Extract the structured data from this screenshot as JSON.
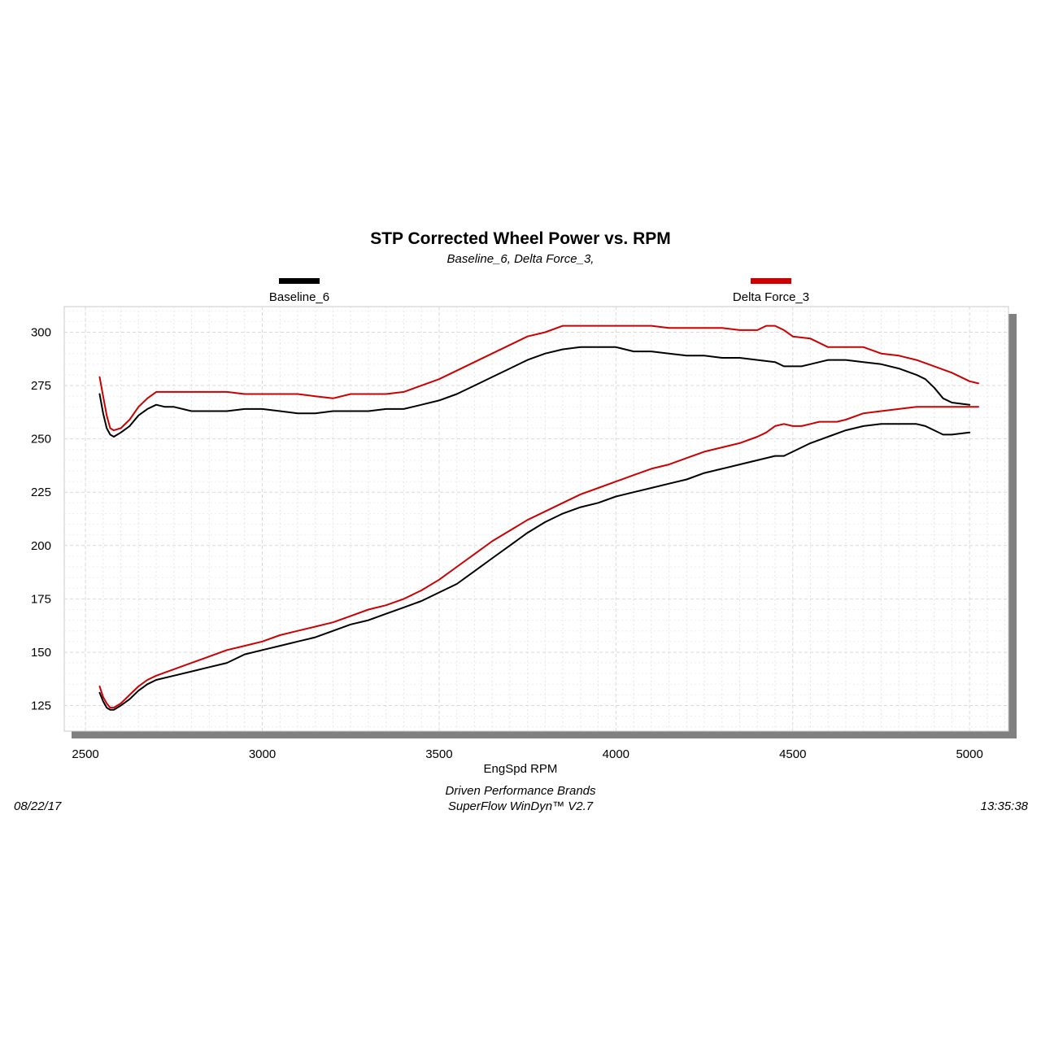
{
  "header": {
    "title": "STP Corrected Wheel Power vs. RPM",
    "subtitle": "Baseline_6, Delta Force_3,"
  },
  "legend": [
    {
      "label": "Baseline_6",
      "color": "#000000"
    },
    {
      "label": "Delta Force_3",
      "color": "#cc0000"
    }
  ],
  "footer": {
    "date": "08/22/17",
    "company": "Driven Performance Brands",
    "software": "SuperFlow WinDyn™  V2.7",
    "time": "13:35:38"
  },
  "chart_data": {
    "type": "line",
    "xlabel": "EngSpd  RPM",
    "ylabel": "",
    "xlim": [
      2440,
      5110
    ],
    "ylim": [
      113,
      312
    ],
    "xticks": [
      2500,
      3000,
      3500,
      4000,
      4500,
      5000
    ],
    "yticks": [
      125,
      150,
      175,
      200,
      225,
      250,
      275,
      300
    ],
    "grid": true,
    "legend_position": "top",
    "series": [
      {
        "name": "Baseline_6",
        "color": "#000000",
        "x": [
          2540,
          2550,
          2560,
          2570,
          2580,
          2600,
          2625,
          2650,
          2675,
          2700,
          2725,
          2750,
          2800,
          2850,
          2900,
          2950,
          3000,
          3050,
          3100,
          3150,
          3200,
          3250,
          3300,
          3350,
          3400,
          3450,
          3500,
          3550,
          3600,
          3650,
          3700,
          3750,
          3800,
          3850,
          3900,
          3950,
          4000,
          4050,
          4100,
          4150,
          4200,
          4250,
          4300,
          4350,
          4400,
          4450,
          4475,
          4500,
          4525,
          4550,
          4600,
          4650,
          4700,
          4750,
          4800,
          4850,
          4875,
          4900,
          4925,
          4950,
          5000
        ],
        "y": [
          271,
          262,
          255,
          252,
          251,
          253,
          256,
          261,
          264,
          266,
          265,
          265,
          263,
          263,
          263,
          264,
          264,
          263,
          262,
          262,
          263,
          263,
          263,
          264,
          264,
          266,
          268,
          271,
          275,
          279,
          283,
          287,
          290,
          292,
          293,
          293,
          293,
          291,
          291,
          290,
          289,
          289,
          288,
          288,
          287,
          286,
          284,
          284,
          284,
          285,
          287,
          287,
          286,
          285,
          283,
          280,
          278,
          274,
          269,
          267,
          266
        ]
      },
      {
        "name": "Delta Force_3",
        "color": "#cc0000",
        "x": [
          2540,
          2550,
          2560,
          2570,
          2580,
          2600,
          2625,
          2650,
          2675,
          2700,
          2725,
          2750,
          2800,
          2850,
          2900,
          2950,
          3000,
          3050,
          3100,
          3150,
          3200,
          3250,
          3300,
          3350,
          3400,
          3450,
          3500,
          3550,
          3600,
          3650,
          3700,
          3750,
          3800,
          3850,
          3900,
          3950,
          4000,
          4050,
          4100,
          4150,
          4200,
          4250,
          4300,
          4350,
          4400,
          4425,
          4450,
          4475,
          4500,
          4550,
          4600,
          4650,
          4700,
          4750,
          4800,
          4850,
          4900,
          4950,
          5000,
          5025
        ],
        "y": [
          279,
          270,
          261,
          255,
          254,
          255,
          259,
          265,
          269,
          272,
          272,
          272,
          272,
          272,
          272,
          271,
          271,
          271,
          271,
          270,
          269,
          271,
          271,
          271,
          272,
          275,
          278,
          282,
          286,
          290,
          294,
          298,
          300,
          303,
          303,
          303,
          303,
          303,
          303,
          302,
          302,
          302,
          302,
          301,
          301,
          303,
          303,
          301,
          298,
          297,
          293,
          293,
          293,
          290,
          289,
          287,
          284,
          281,
          277,
          276
        ]
      },
      {
        "name": "",
        "color": "#000000",
        "x": [
          2540,
          2550,
          2560,
          2570,
          2580,
          2600,
          2625,
          2650,
          2675,
          2700,
          2750,
          2800,
          2850,
          2900,
          2950,
          3000,
          3050,
          3100,
          3150,
          3200,
          3250,
          3300,
          3350,
          3400,
          3450,
          3500,
          3550,
          3600,
          3650,
          3700,
          3750,
          3800,
          3850,
          3900,
          3950,
          4000,
          4050,
          4100,
          4150,
          4200,
          4250,
          4300,
          4350,
          4400,
          4450,
          4475,
          4500,
          4550,
          4600,
          4650,
          4700,
          4750,
          4800,
          4850,
          4875,
          4900,
          4925,
          4950,
          5000
        ],
        "y": [
          131,
          127,
          124,
          123,
          123,
          125,
          128,
          132,
          135,
          137,
          139,
          141,
          143,
          145,
          149,
          151,
          153,
          155,
          157,
          160,
          163,
          165,
          168,
          171,
          174,
          178,
          182,
          188,
          194,
          200,
          206,
          211,
          215,
          218,
          220,
          223,
          225,
          227,
          229,
          231,
          234,
          236,
          238,
          240,
          242,
          242,
          244,
          248,
          251,
          254,
          256,
          257,
          257,
          257,
          256,
          254,
          252,
          252,
          253
        ]
      },
      {
        "name": "",
        "color": "#cc0000",
        "x": [
          2540,
          2550,
          2560,
          2570,
          2580,
          2600,
          2625,
          2650,
          2675,
          2700,
          2750,
          2800,
          2850,
          2900,
          2950,
          3000,
          3050,
          3100,
          3150,
          3200,
          3250,
          3300,
          3350,
          3400,
          3450,
          3500,
          3550,
          3600,
          3650,
          3700,
          3750,
          3800,
          3850,
          3900,
          3950,
          4000,
          4050,
          4100,
          4150,
          4200,
          4250,
          4300,
          4350,
          4400,
          4425,
          4450,
          4475,
          4500,
          4525,
          4550,
          4575,
          4600,
          4625,
          4650,
          4700,
          4750,
          4800,
          4850,
          4900,
          4950,
          5000,
          5025
        ],
        "y": [
          134,
          129,
          126,
          124,
          124,
          126,
          130,
          134,
          137,
          139,
          142,
          145,
          148,
          151,
          153,
          155,
          158,
          160,
          162,
          164,
          167,
          170,
          172,
          175,
          179,
          184,
          190,
          196,
          202,
          207,
          212,
          216,
          220,
          224,
          227,
          230,
          233,
          236,
          238,
          241,
          244,
          246,
          248,
          251,
          253,
          256,
          257,
          256,
          256,
          257,
          258,
          258,
          258,
          259,
          262,
          263,
          264,
          265,
          265,
          265,
          265,
          265
        ]
      }
    ]
  }
}
